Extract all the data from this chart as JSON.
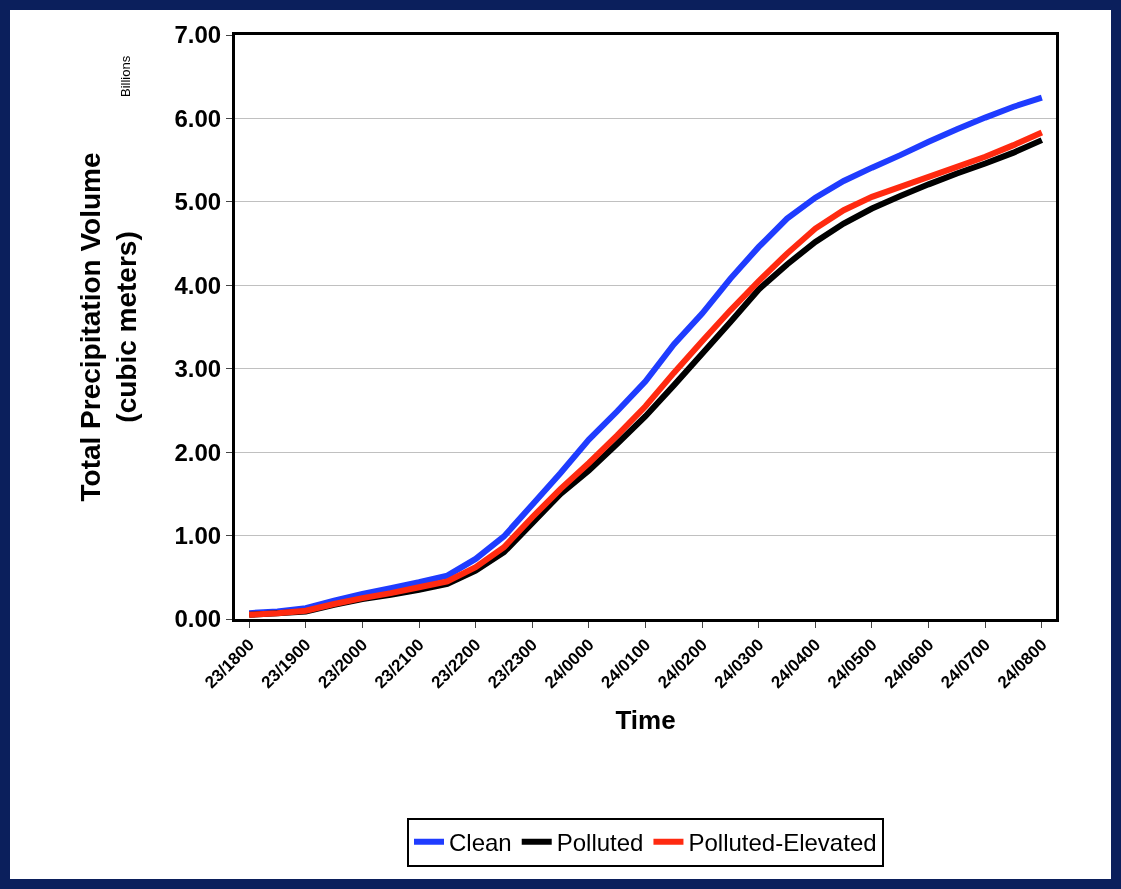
{
  "chart_data": {
    "type": "line",
    "xlabel": "Time",
    "ylabel": "Total Precipitation Volume\n(cubic meters)",
    "annotations": [
      "Billions"
    ],
    "categories": [
      "23/1800",
      null,
      "23/1900",
      null,
      "23/2000",
      null,
      "23/2100",
      null,
      "23/2200",
      null,
      "23/2300",
      null,
      "24/0000",
      null,
      "24/0100",
      null,
      "24/0200",
      null,
      "24/0300",
      null,
      "24/0400",
      null,
      "24/0500",
      null,
      "24/0600",
      null,
      "24/0700",
      null,
      "24/0800"
    ],
    "series": [
      {
        "name": "Clean",
        "color": "#1f3cff",
        "values": [
          0.07,
          0.09,
          0.13,
          0.22,
          0.3,
          0.37,
          0.44,
          0.52,
          0.72,
          0.99,
          1.37,
          1.75,
          2.15,
          2.49,
          2.85,
          3.29,
          3.66,
          4.08,
          4.46,
          4.8,
          5.05,
          5.25,
          5.41,
          5.56,
          5.72,
          5.87,
          6.01,
          6.14,
          6.25
        ]
      },
      {
        "name": "Polluted",
        "color": "#000000",
        "values": [
          0.05,
          0.07,
          0.09,
          0.17,
          0.24,
          0.29,
          0.35,
          0.42,
          0.58,
          0.8,
          1.15,
          1.5,
          1.78,
          2.1,
          2.43,
          2.8,
          3.18,
          3.56,
          3.95,
          4.25,
          4.52,
          4.74,
          4.92,
          5.07,
          5.21,
          5.34,
          5.46,
          5.59,
          5.74
        ]
      },
      {
        "name": "Polluted-Elevated",
        "color": "#ff2a10",
        "values": [
          0.05,
          0.07,
          0.1,
          0.18,
          0.25,
          0.31,
          0.38,
          0.45,
          0.62,
          0.86,
          1.22,
          1.56,
          1.87,
          2.2,
          2.55,
          2.95,
          3.33,
          3.7,
          4.05,
          4.38,
          4.68,
          4.9,
          5.06,
          5.18,
          5.3,
          5.42,
          5.54,
          5.68,
          5.83
        ]
      }
    ],
    "ylim": [
      0,
      7
    ],
    "yticks": [
      {
        "value": 0,
        "label": "0.00"
      },
      {
        "value": 1,
        "label": "1.00"
      },
      {
        "value": 2,
        "label": "2.00"
      },
      {
        "value": 3,
        "label": "3.00"
      },
      {
        "value": 4,
        "label": "4.00"
      },
      {
        "value": 5,
        "label": "5.00"
      },
      {
        "value": 6,
        "label": "6.00"
      },
      {
        "value": 7,
        "label": "7.00"
      }
    ],
    "grid": "y",
    "legend": "bottom",
    "marker": "none",
    "line_style": "solid"
  }
}
